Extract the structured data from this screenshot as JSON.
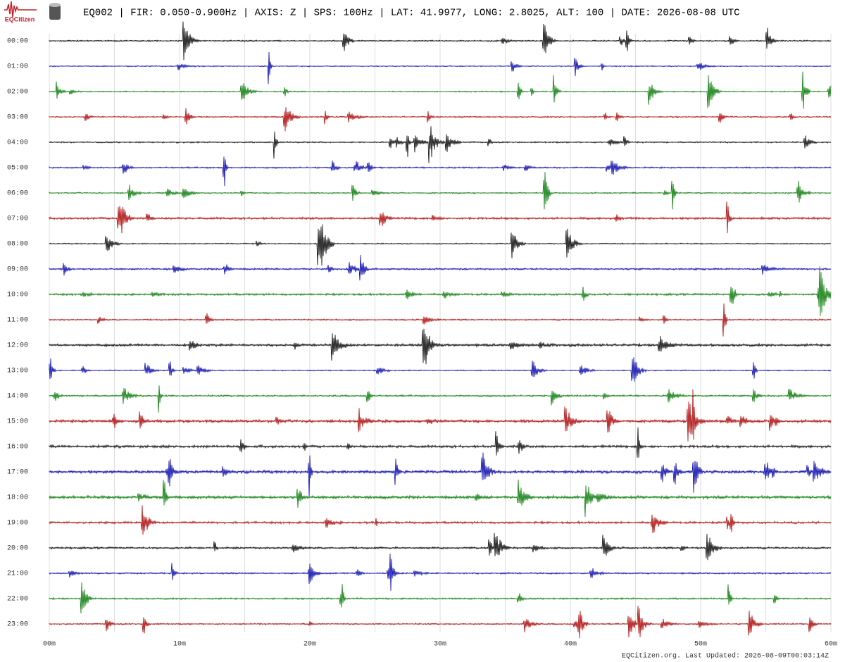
{
  "header": {
    "logo_text": "EQCitizen",
    "title": "EQ002 | FIR: 0.050-0.900Hz | AXIS: Z | SPS: 100Hz | LAT: 41.9977, LONG: 2.8025, ALT: 100 | DATE: 2026-08-08 UTC"
  },
  "hours": [
    "00:00",
    "01:00",
    "02:00",
    "03:00",
    "04:00",
    "05:00",
    "06:00",
    "07:00",
    "08:00",
    "09:00",
    "10:00",
    "11:00",
    "12:00",
    "13:00",
    "14:00",
    "15:00",
    "16:00",
    "17:00",
    "18:00",
    "19:00",
    "20:00",
    "21:00",
    "22:00",
    "23:00"
  ],
  "minute_labels": [
    "00m",
    "10m",
    "20m",
    "30m",
    "40m",
    "50m",
    "60m"
  ],
  "footer": "EQCitizen.org. Last Updated: 2026-08-09T00:03:14Z"
}
